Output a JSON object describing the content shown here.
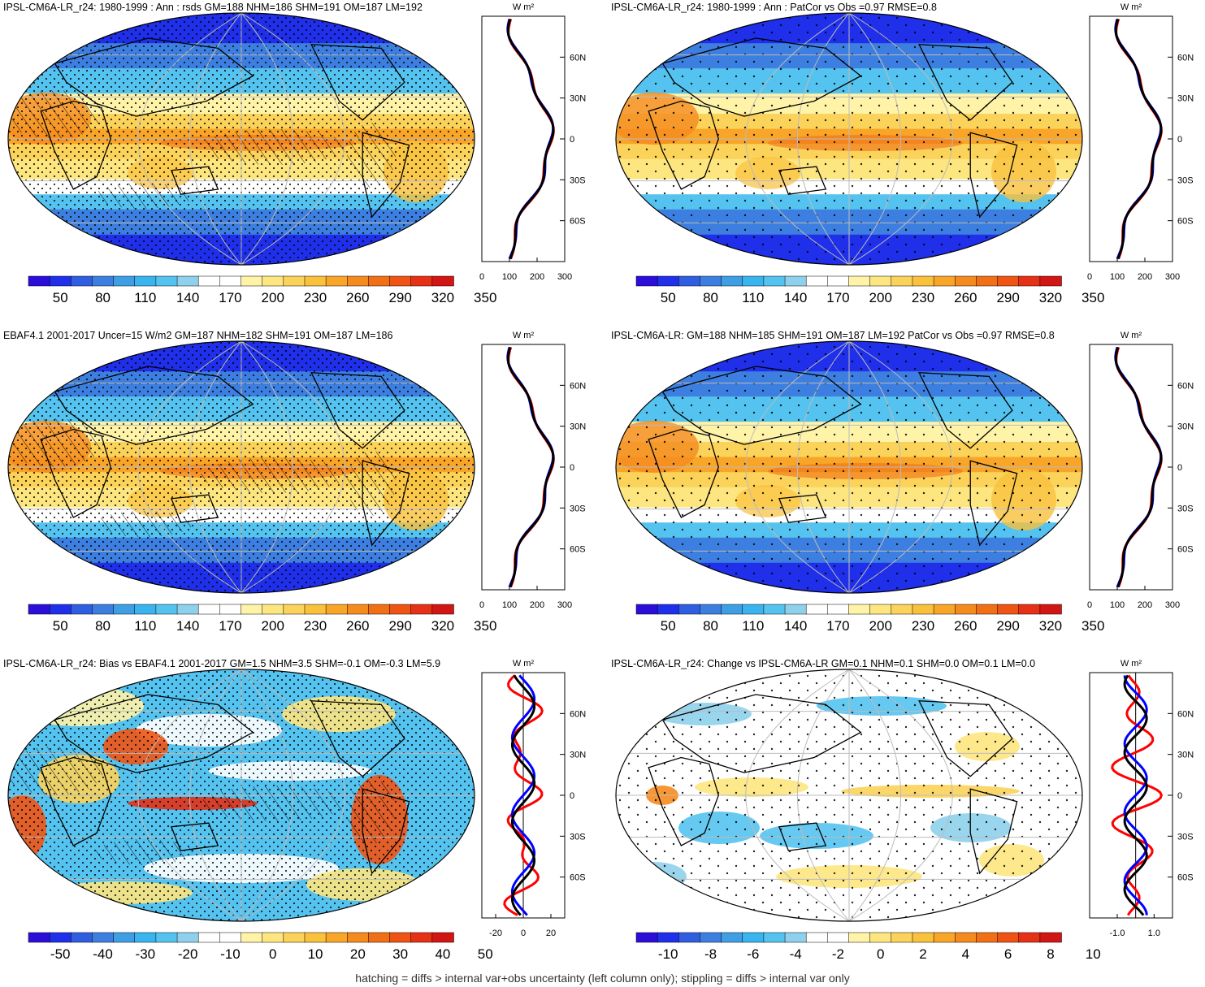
{
  "colors": {
    "palette": [
      "#2b0fd9",
      "#1f2fea",
      "#2f5fe0",
      "#3d7fe0",
      "#3f9fe5",
      "#39b4ef",
      "#55c3ef",
      "#8fd0ec",
      "#ffffff",
      "#ffffff",
      "#fff3a8",
      "#fde680",
      "#fbd35a",
      "#f9c13c",
      "#f8a528",
      "#f58b1f",
      "#f27015",
      "#ef5414",
      "#e63117",
      "#d11613"
    ],
    "ocean_cold": "#3d7fe0",
    "ocean_hot": "#f8a528",
    "land_line": "#000000",
    "profile_obs": "#ff0000",
    "profile_model": "#0000ff",
    "profile_ref": "#000000"
  },
  "footer_text": "hatching = diffs > internal var+obs uncertainty (left column only); stippling = diffs > internal var only",
  "panels": [
    {
      "id": "model-clim-r24",
      "title": "IPSL-CM6A-LR_r24: 1980-1999 : Ann : rsds GM=188 NHM=186 SHM=191 OM=187 LM=192",
      "colorbar_labels": [
        "50",
        "80",
        "110",
        "140",
        "170",
        "200",
        "230",
        "260",
        "290",
        "320",
        "350"
      ],
      "hatched": true,
      "profile": {
        "unit": "W m²",
        "lat_labels": [
          "60N",
          "30N",
          "0",
          "30S",
          "60S"
        ],
        "x_ticks": [
          "0",
          "100",
          "200",
          "300"
        ],
        "x_range": [
          0,
          300
        ],
        "zero_line": false
      }
    },
    {
      "id": "model-clim-r24-patcor",
      "title": "IPSL-CM6A-LR_r24: 1980-1999 : Ann : PatCor vs Obs =0.97 RMSE=0.8",
      "colorbar_labels": [
        "50",
        "80",
        "110",
        "140",
        "170",
        "200",
        "230",
        "260",
        "290",
        "320",
        "350"
      ],
      "hatched": false,
      "profile": {
        "unit": "W m²",
        "lat_labels": [
          "60N",
          "30N",
          "0",
          "30S",
          "60S"
        ],
        "x_ticks": [
          "0",
          "100",
          "200",
          "300"
        ],
        "x_range": [
          0,
          300
        ],
        "zero_line": false
      }
    },
    {
      "id": "obs-ebaf",
      "title": "EBAF4.1 2001-2017 Uncer=15 W/m2 GM=187 NHM=182 SHM=191 OM=187 LM=186",
      "colorbar_labels": [
        "50",
        "80",
        "110",
        "140",
        "170",
        "200",
        "230",
        "260",
        "290",
        "320",
        "350"
      ],
      "hatched": true,
      "profile": {
        "unit": "W m²",
        "lat_labels": [
          "60N",
          "30N",
          "0",
          "30S",
          "60S"
        ],
        "x_ticks": [
          "0",
          "100",
          "200",
          "300"
        ],
        "x_range": [
          0,
          300
        ],
        "zero_line": false
      }
    },
    {
      "id": "model-ensemble",
      "title": "IPSL-CM6A-LR: GM=188 NHM=185 SHM=191 OM=187 LM=192 PatCor vs Obs =0.97 RMSE=0.8",
      "colorbar_labels": [
        "50",
        "80",
        "110",
        "140",
        "170",
        "200",
        "230",
        "260",
        "290",
        "320",
        "350"
      ],
      "hatched": false,
      "profile": {
        "unit": "W m²",
        "lat_labels": [
          "60N",
          "30N",
          "0",
          "30S",
          "60S"
        ],
        "x_ticks": [
          "0",
          "100",
          "200",
          "300"
        ],
        "x_range": [
          0,
          300
        ],
        "zero_line": false
      }
    },
    {
      "id": "bias",
      "title": "IPSL-CM6A-LR_r24: Bias vs EBAF4.1 2001-2017 GM=1.5 NHM=3.5 SHM=-0.1 OM=-0.3 LM=5.9",
      "colorbar_labels": [
        "-50",
        "-40",
        "-30",
        "-20",
        "-10",
        "0",
        "10",
        "20",
        "30",
        "40",
        "50"
      ],
      "hatched": true,
      "profile": {
        "unit": "W m²",
        "lat_labels": [
          "60N",
          "30N",
          "0",
          "30S",
          "60S"
        ],
        "x_ticks": [
          "-20",
          "0",
          "20"
        ],
        "x_range": [
          -30,
          30
        ],
        "zero_line": true
      }
    },
    {
      "id": "change",
      "title": "IPSL-CM6A-LR_r24: Change vs IPSL-CM6A-LR GM=0.1 NHM=0.1 SHM=0.0 OM=0.1 LM=0.0",
      "colorbar_labels": [
        "-10",
        "-8",
        "-6",
        "-4",
        "-2",
        "0",
        "2",
        "4",
        "6",
        "8",
        "10"
      ],
      "hatched": false,
      "profile": {
        "unit": "W m²",
        "lat_labels": [
          "60N",
          "30N",
          "0",
          "30S",
          "60S"
        ],
        "x_ticks": [
          "-1.0",
          "1.0"
        ],
        "x_range": [
          -2.5,
          2
        ],
        "zero_line": true
      }
    }
  ]
}
